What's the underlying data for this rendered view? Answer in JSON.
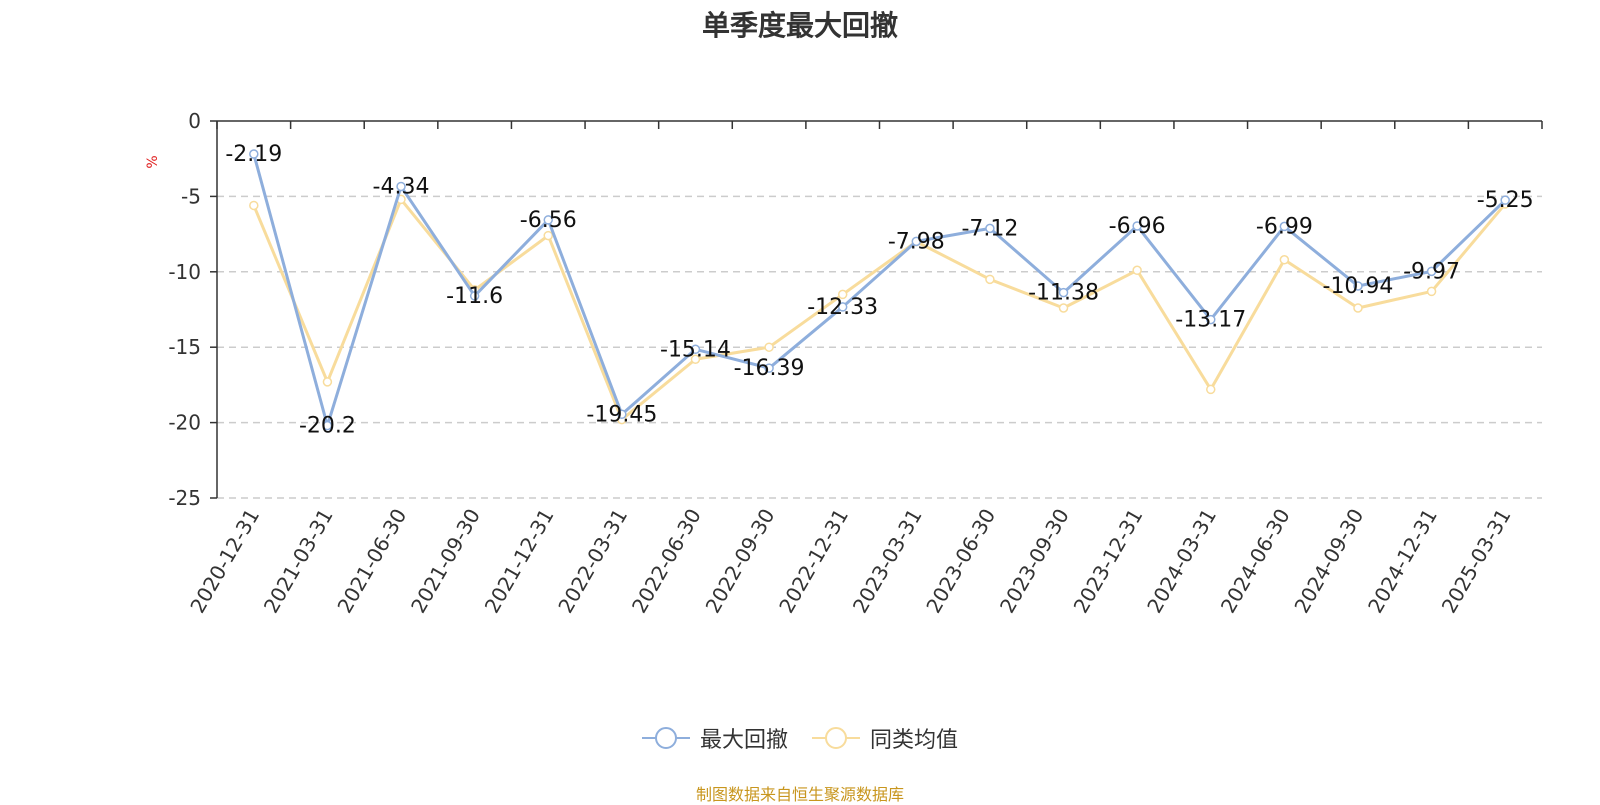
{
  "chart_data": {
    "type": "line",
    "title": "单季度最大回撤",
    "ylabel": "%",
    "categories": [
      "2020-12-31",
      "2021-03-31",
      "2021-06-30",
      "2021-09-30",
      "2021-12-31",
      "2022-03-31",
      "2022-06-30",
      "2022-09-30",
      "2022-12-31",
      "2023-03-31",
      "2023-06-30",
      "2023-09-30",
      "2023-12-31",
      "2024-03-31",
      "2024-06-30",
      "2024-09-30",
      "2024-12-31",
      "2025-03-31"
    ],
    "ylim": [
      -25,
      0
    ],
    "yticks": [
      0,
      -5,
      -10,
      -15,
      -20,
      -25
    ],
    "grid": true,
    "legend_position": "bottom-center",
    "series": [
      {
        "name": "最大回撤",
        "color": "#8eaedc",
        "values": [
          -2.19,
          -20.2,
          -4.34,
          -11.6,
          -6.56,
          -19.45,
          -15.14,
          -16.39,
          -12.33,
          -7.98,
          -7.12,
          -11.38,
          -6.96,
          -13.17,
          -6.99,
          -10.94,
          -9.97,
          -5.25
        ],
        "labels": [
          "-2.19",
          "-20.2",
          "-4.34",
          "-11.6",
          "-6.56",
          "-19.45",
          "-15.14",
          "-16.39",
          "-12.33",
          "-7.98",
          "-7.12",
          "-11.38",
          "-6.96",
          "-13.17",
          "-6.99",
          "-10.94",
          "-9.97",
          "-5.25"
        ]
      },
      {
        "name": "同类均值",
        "color": "#f8dc9c",
        "values": [
          -5.6,
          -17.3,
          -5.2,
          -11.2,
          -7.6,
          -19.8,
          -15.8,
          -15.0,
          -11.5,
          -8.0,
          -10.5,
          -12.4,
          -9.9,
          -17.8,
          -9.2,
          -12.4,
          -11.3,
          -5.5
        ]
      }
    ]
  },
  "footer": {
    "source": "制图数据来自恒生聚源数据库"
  }
}
